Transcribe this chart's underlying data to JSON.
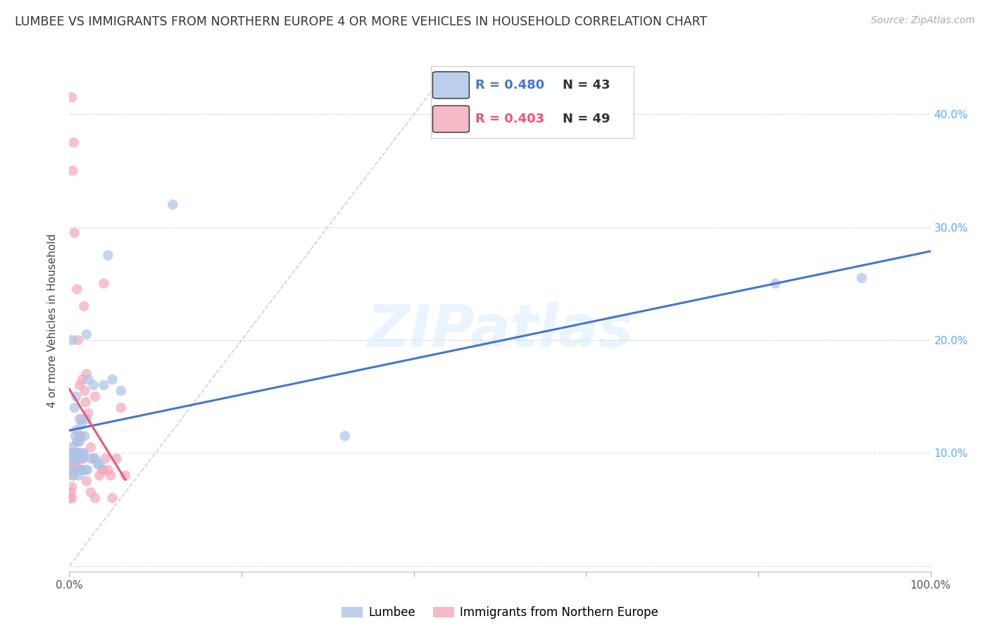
{
  "title": "LUMBEE VS IMMIGRANTS FROM NORTHERN EUROPE 4 OR MORE VEHICLES IN HOUSEHOLD CORRELATION CHART",
  "source": "Source: ZipAtlas.com",
  "ylabel": "4 or more Vehicles in Household",
  "xlim": [
    0.0,
    1.0
  ],
  "ylim": [
    -0.005,
    0.44
  ],
  "lumbee_color": "#aac4e8",
  "immigrant_color": "#f4a8b8",
  "lumbee_line_color": "#4477cc",
  "immigrant_line_color": "#ee5577",
  "diagonal_color": "#cccccc",
  "R_lumbee": 0.48,
  "N_lumbee": 43,
  "R_immigrant": 0.403,
  "N_immigrant": 49,
  "lumbee_label": "Lumbee",
  "immigrant_label": "Immigrants from Northern Europe",
  "watermark": "ZIPatlas",
  "lumbee_x": [
    0.001,
    0.002,
    0.003,
    0.004,
    0.005,
    0.006,
    0.007,
    0.007,
    0.008,
    0.009,
    0.01,
    0.01,
    0.011,
    0.012,
    0.012,
    0.013,
    0.014,
    0.015,
    0.016,
    0.017,
    0.018,
    0.019,
    0.02,
    0.021,
    0.022,
    0.025,
    0.028,
    0.03,
    0.033,
    0.035,
    0.04,
    0.045,
    0.05,
    0.06,
    0.12,
    0.02,
    0.008,
    0.006,
    0.004,
    0.003,
    0.32,
    0.82,
    0.92
  ],
  "lumbee_y": [
    0.095,
    0.085,
    0.105,
    0.1,
    0.1,
    0.095,
    0.115,
    0.095,
    0.12,
    0.11,
    0.1,
    0.085,
    0.08,
    0.11,
    0.13,
    0.085,
    0.125,
    0.095,
    0.1,
    0.1,
    0.115,
    0.085,
    0.13,
    0.085,
    0.165,
    0.095,
    0.16,
    0.095,
    0.09,
    0.09,
    0.16,
    0.275,
    0.165,
    0.155,
    0.32,
    0.205,
    0.15,
    0.14,
    0.08,
    0.2,
    0.115,
    0.25,
    0.255
  ],
  "immigrant_x": [
    0.001,
    0.002,
    0.003,
    0.003,
    0.004,
    0.005,
    0.006,
    0.007,
    0.007,
    0.008,
    0.008,
    0.009,
    0.01,
    0.011,
    0.012,
    0.013,
    0.014,
    0.015,
    0.016,
    0.017,
    0.018,
    0.019,
    0.02,
    0.022,
    0.025,
    0.028,
    0.03,
    0.035,
    0.038,
    0.04,
    0.042,
    0.045,
    0.048,
    0.05,
    0.055,
    0.06,
    0.065,
    0.003,
    0.004,
    0.005,
    0.006,
    0.009,
    0.01,
    0.012,
    0.015,
    0.02,
    0.025,
    0.03,
    0.04
  ],
  "immigrant_y": [
    0.06,
    0.065,
    0.07,
    0.06,
    0.09,
    0.08,
    0.085,
    0.1,
    0.095,
    0.09,
    0.085,
    0.11,
    0.095,
    0.1,
    0.115,
    0.115,
    0.13,
    0.165,
    0.095,
    0.23,
    0.155,
    0.145,
    0.17,
    0.135,
    0.105,
    0.095,
    0.15,
    0.08,
    0.085,
    0.25,
    0.095,
    0.085,
    0.08,
    0.06,
    0.095,
    0.14,
    0.08,
    0.415,
    0.35,
    0.375,
    0.295,
    0.245,
    0.2,
    0.16,
    0.085,
    0.075,
    0.065,
    0.06,
    0.085
  ],
  "background_color": "#FFFFFF",
  "grid_color": "#dddddd",
  "right_tick_color": "#55aaff"
}
